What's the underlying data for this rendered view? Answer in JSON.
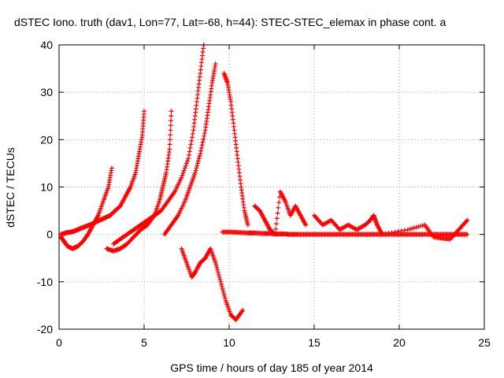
{
  "chart_data": {
    "type": "scatter",
    "title": "dSTEC Iono. truth (dav1, Lon=77, Lat=-68, h=44): STEC-STEC_elemax in phase cont. a",
    "xlabel": "GPS time / hours of day 185 of year 2014",
    "ylabel": "dSTEC  / TECUs",
    "xlim": [
      0,
      25
    ],
    "ylim": [
      -20,
      40
    ],
    "xticks": [
      "0",
      "5",
      "10",
      "15",
      "20",
      "25"
    ],
    "yticks": [
      "-20",
      "-10",
      "0",
      "10",
      "20",
      "30",
      "40"
    ],
    "grid": true,
    "marker": "+",
    "color": "#ff0000",
    "series": [
      {
        "x": [
          0.1,
          0.3,
          0.5,
          0.7,
          0.9,
          1.1,
          1.3,
          1.5,
          1.8,
          2.1,
          2.4,
          2.7,
          3.0,
          3.3,
          3.6,
          3.9,
          4.2,
          4.5,
          4.7,
          4.9,
          5.0
        ],
        "y": [
          0,
          0.2,
          0.4,
          0.5,
          0.7,
          1,
          1.3,
          1.6,
          2,
          2.5,
          3,
          3.5,
          4,
          5,
          6,
          8,
          10,
          13,
          17,
          21,
          26
        ]
      },
      {
        "x": [
          0.1,
          0.3,
          0.5,
          0.8,
          1.1,
          1.4,
          1.7,
          2.0,
          2.3,
          2.6,
          2.9,
          3.1
        ],
        "y": [
          -0.5,
          -1.5,
          -2.5,
          -3,
          -2.5,
          -1.5,
          0,
          2,
          4,
          7,
          10,
          14
        ]
      },
      {
        "x": [
          2.8,
          3.2,
          3.6,
          4.0,
          4.4,
          4.8,
          5.2,
          5.6,
          5.9,
          6.1,
          6.3,
          6.5,
          6.6
        ],
        "y": [
          -3,
          -3.5,
          -3,
          -2,
          -0.5,
          1,
          2,
          4,
          7,
          10,
          13,
          18,
          26
        ]
      },
      {
        "x": [
          3.2,
          3.6,
          4.0,
          4.4,
          4.8,
          5.2,
          5.6,
          6.0,
          6.4,
          6.8,
          7.2,
          7.6,
          7.9,
          8.1,
          8.3,
          8.5
        ],
        "y": [
          -2,
          -1,
          0,
          1,
          2,
          3,
          4,
          5,
          7,
          9,
          12,
          16,
          22,
          28,
          34,
          40
        ]
      },
      {
        "x": [
          6.2,
          6.6,
          7.0,
          7.4,
          7.7,
          8.0,
          8.3,
          8.6,
          8.8,
          9.0,
          9.2
        ],
        "y": [
          0,
          2,
          4,
          7,
          10,
          13,
          17,
          22,
          27,
          32,
          36
        ]
      },
      {
        "x": [
          7.2,
          7.5,
          7.8,
          8.0,
          8.3,
          8.6,
          8.9,
          9.2,
          9.5,
          9.8,
          10.1,
          10.4,
          10.8
        ],
        "y": [
          -3,
          -6,
          -9,
          -8,
          -6,
          -5,
          -3,
          -6,
          -10,
          -14,
          -17,
          -18,
          -16
        ]
      },
      {
        "x": [
          9.7,
          9.9,
          10.1,
          10.3,
          10.5,
          10.7,
          10.9,
          11.1
        ],
        "y": [
          34,
          32,
          28,
          22,
          16,
          10,
          5,
          2
        ]
      },
      {
        "x": [
          9.6,
          10.1,
          10.6,
          11.1,
          11.5,
          12.0,
          12.4,
          12.8,
          13.2,
          13.6,
          14.0,
          14.5,
          15.0,
          15.5,
          16.0,
          16.5,
          17.0,
          17.5,
          18.0,
          18.5,
          19.0,
          19.5,
          20.0,
          20.5,
          21.0,
          21.5,
          22.0,
          22.5,
          23.0,
          23.5,
          24.0
        ],
        "y": [
          0.5,
          0.5,
          0.4,
          0.3,
          0.3,
          0.2,
          0.2,
          0.1,
          0.1,
          0,
          0,
          0,
          0,
          0,
          0,
          0,
          0,
          0,
          0,
          0,
          0,
          0,
          0,
          0,
          0,
          0,
          0,
          0,
          0,
          0,
          0
        ]
      },
      {
        "x": [
          11.5,
          11.8,
          12.1,
          12.4,
          12.7,
          13.0,
          13.3,
          13.6,
          13.9,
          14.2,
          14.5
        ],
        "y": [
          6,
          5,
          3,
          1,
          0,
          9,
          7,
          4,
          6,
          4,
          2
        ]
      },
      {
        "x": [
          15.0,
          15.5,
          16.0,
          16.5,
          17.0,
          17.5,
          18.0,
          18.3,
          18.5,
          18.7,
          19.0,
          20.5,
          21.5,
          22.0,
          22.5,
          23.0,
          23.5,
          24.0
        ],
        "y": [
          4,
          2,
          3,
          1,
          2,
          1,
          2,
          3,
          4,
          2,
          0,
          1,
          2,
          -0.5,
          -0.8,
          -1,
          1,
          3
        ]
      }
    ]
  }
}
